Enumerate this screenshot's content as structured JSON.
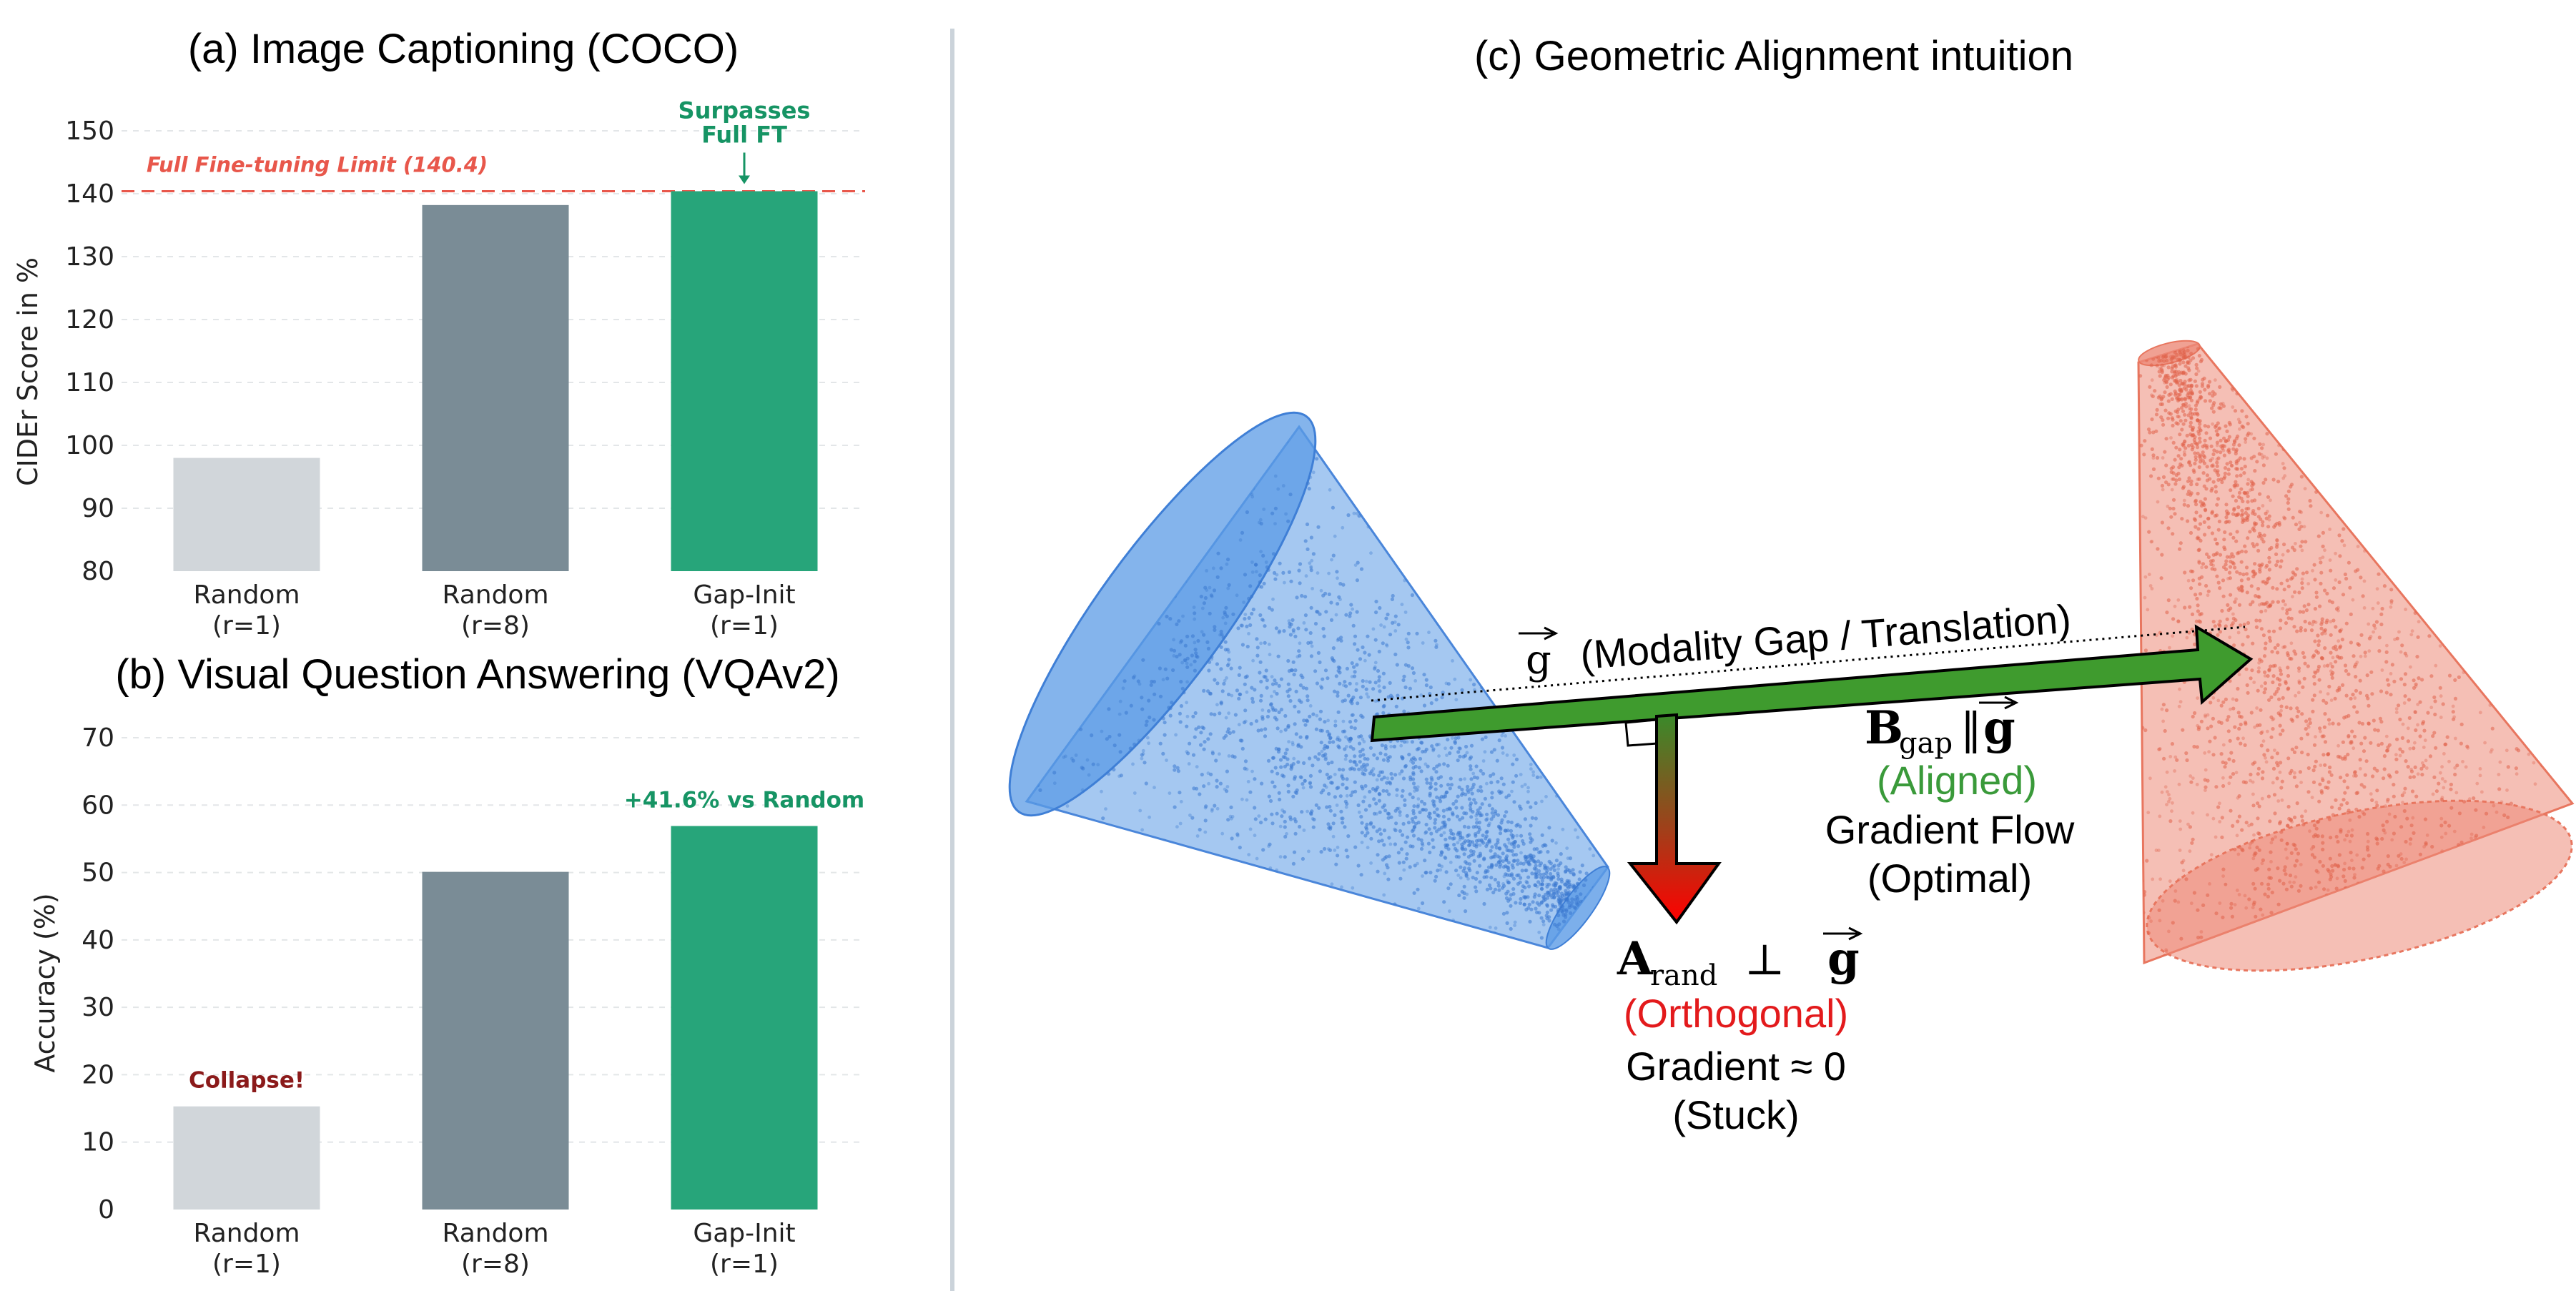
{
  "chart_data": [
    {
      "type": "bar",
      "title": "(a) Image Captioning (COCO)",
      "ylabel": "CIDEr Score in %",
      "ylim": [
        80,
        150
      ],
      "yticks": [
        80,
        90,
        100,
        110,
        120,
        130,
        140,
        150
      ],
      "grid": "horizontal-dashed",
      "categories": [
        [
          "Random",
          "(r=1)"
        ],
        [
          "Random",
          "(r=8)"
        ],
        [
          "Gap-Init",
          "(r=1)"
        ]
      ],
      "values": [
        98,
        138.2,
        140.4
      ],
      "colors": [
        "#d1d6da",
        "#7a8c96",
        "#27a57a"
      ],
      "reference_line": {
        "value": 140.4,
        "label": "Full Fine-tuning Limit (140.4)",
        "color": "#e8574b"
      },
      "annotation": {
        "lines": [
          "Surpasses",
          "Full FT"
        ],
        "color": "#169464",
        "target_bar": 2
      }
    },
    {
      "type": "bar",
      "title": "(b) Visual Question Answering (VQAv2)",
      "ylabel": "Accuracy (%)",
      "ylim": [
        0,
        70
      ],
      "yticks": [
        0,
        10,
        20,
        30,
        40,
        50,
        60,
        70
      ],
      "grid": "horizontal-dashed",
      "categories": [
        [
          "Random",
          "(r=1)"
        ],
        [
          "Random",
          "(r=8)"
        ],
        [
          "Gap-Init",
          "(r=1)"
        ]
      ],
      "values": [
        15.3,
        50.1,
        56.9
      ],
      "colors": [
        "#d1d6da",
        "#7a8c96",
        "#27a57a"
      ],
      "bar_labels": [
        {
          "bar": 0,
          "text": "Collapse!",
          "color": "#8b1a1a"
        },
        {
          "bar": 2,
          "text": "+41.6% vs Random",
          "color": "#169464"
        }
      ]
    }
  ],
  "diagram": {
    "title": "(c) Geometric Alignment intuition",
    "gap_label": "(Modality Gap / Translation)",
    "g_symbol": "g",
    "b_symbol": "B",
    "b_sub": "gap",
    "b_relation": "‖",
    "aligned_label": "(Aligned)",
    "aligned_color": "#3a9a3a",
    "optimal_line1": "Gradient Flow",
    "optimal_line2": "(Optimal)",
    "a_symbol": "A",
    "a_sub": "rand",
    "a_relation": "⊥",
    "orth_label": "(Orthogonal)",
    "orth_color": "#e31a1c",
    "stuck_line1": "Gradient ≈ 0",
    "stuck_line2": "(Stuck)",
    "source_cone_color": "#5b9be6",
    "target_cone_color": "#ec8a78"
  }
}
